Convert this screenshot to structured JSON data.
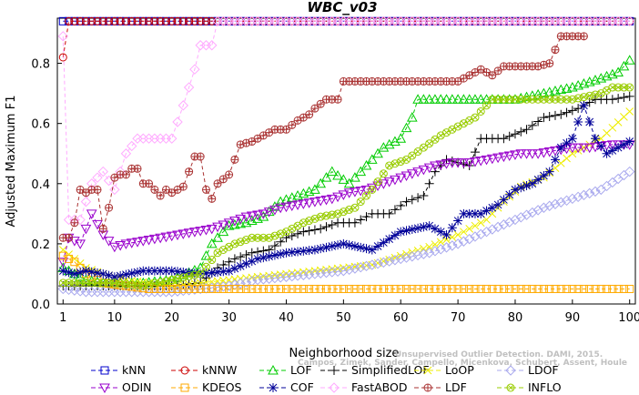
{
  "chart_data": {
    "type": "line",
    "title": "WBC_v03",
    "xlabel": "Neighborhood size",
    "ylabel": "Adjusted Maximum F1",
    "xlim": [
      0,
      101
    ],
    "ylim": [
      0,
      0.95
    ],
    "xticks": [
      1,
      10,
      20,
      30,
      40,
      50,
      60,
      70,
      80,
      90,
      100
    ],
    "yticks": [
      0.0,
      0.2,
      0.4,
      0.6,
      0.8
    ],
    "ytick_labels": [
      "0.0",
      "0.2",
      "0.4",
      "0.6",
      "0.8"
    ],
    "grid": false,
    "legend_position": "bottom",
    "watermark": [
      "Unsupervised Outlier Detection. DAMI, 2015.",
      "Campos, Zimek, Sander, Campello, Micenkova, Schubert, Assent, Houle"
    ],
    "series": [
      {
        "name": "kNN",
        "color": "#0000cc",
        "marker": "square",
        "dash": "6,3",
        "points": [
          [
            1,
            0.94
          ],
          [
            100,
            0.94
          ]
        ]
      },
      {
        "name": "kNNW",
        "color": "#cc0000",
        "marker": "circle",
        "dash": "4,3",
        "points": [
          [
            1,
            0.82
          ],
          [
            2,
            0.94
          ],
          [
            100,
            0.94
          ]
        ]
      },
      {
        "name": "LOF",
        "color": "#00cc00",
        "marker": "triangle-up",
        "dash": "4,3",
        "points": [
          [
            1,
            0.12
          ],
          [
            3,
            0.1
          ],
          [
            5,
            0.08
          ],
          [
            8,
            0.07
          ],
          [
            10,
            0.07
          ],
          [
            15,
            0.07
          ],
          [
            20,
            0.08
          ],
          [
            25,
            0.12
          ],
          [
            27,
            0.2
          ],
          [
            30,
            0.26
          ],
          [
            33,
            0.27
          ],
          [
            36,
            0.29
          ],
          [
            39,
            0.34
          ],
          [
            42,
            0.36
          ],
          [
            45,
            0.38
          ],
          [
            48,
            0.44
          ],
          [
            51,
            0.4
          ],
          [
            54,
            0.46
          ],
          [
            57,
            0.52
          ],
          [
            60,
            0.55
          ],
          [
            62,
            0.62
          ],
          [
            63,
            0.68
          ],
          [
            70,
            0.68
          ],
          [
            80,
            0.68
          ],
          [
            90,
            0.72
          ],
          [
            95,
            0.75
          ],
          [
            98,
            0.77
          ],
          [
            100,
            0.81
          ]
        ]
      },
      {
        "name": "SimplifiedLOF",
        "color": "#000000",
        "marker": "plus",
        "dash": "4,3",
        "points": [
          [
            1,
            0.06
          ],
          [
            5,
            0.06
          ],
          [
            10,
            0.06
          ],
          [
            20,
            0.06
          ],
          [
            25,
            0.07
          ],
          [
            28,
            0.12
          ],
          [
            31,
            0.15
          ],
          [
            34,
            0.17
          ],
          [
            37,
            0.18
          ],
          [
            40,
            0.22
          ],
          [
            43,
            0.24
          ],
          [
            46,
            0.25
          ],
          [
            49,
            0.27
          ],
          [
            52,
            0.27
          ],
          [
            55,
            0.3
          ],
          [
            58,
            0.3
          ],
          [
            61,
            0.34
          ],
          [
            64,
            0.36
          ],
          [
            66,
            0.44
          ],
          [
            68,
            0.48
          ],
          [
            72,
            0.46
          ],
          [
            74,
            0.55
          ],
          [
            78,
            0.55
          ],
          [
            82,
            0.58
          ],
          [
            85,
            0.62
          ],
          [
            88,
            0.63
          ],
          [
            91,
            0.65
          ],
          [
            94,
            0.68
          ],
          [
            97,
            0.68
          ],
          [
            100,
            0.69
          ]
        ]
      },
      {
        "name": "LoOP",
        "color": "#eeee00",
        "marker": "x",
        "dash": "4,3",
        "points": [
          [
            1,
            0.18
          ],
          [
            3,
            0.15
          ],
          [
            5,
            0.12
          ],
          [
            8,
            0.1
          ],
          [
            12,
            0.08
          ],
          [
            16,
            0.07
          ],
          [
            20,
            0.06
          ],
          [
            25,
            0.07
          ],
          [
            30,
            0.08
          ],
          [
            35,
            0.09
          ],
          [
            40,
            0.1
          ],
          [
            45,
            0.11
          ],
          [
            50,
            0.12
          ],
          [
            55,
            0.13
          ],
          [
            60,
            0.16
          ],
          [
            65,
            0.19
          ],
          [
            70,
            0.23
          ],
          [
            75,
            0.28
          ],
          [
            78,
            0.34
          ],
          [
            81,
            0.39
          ],
          [
            85,
            0.42
          ],
          [
            90,
            0.5
          ],
          [
            95,
            0.55
          ],
          [
            100,
            0.64
          ]
        ]
      },
      {
        "name": "LDOF",
        "color": "#aaaaee",
        "marker": "diamond",
        "dash": "4,3",
        "points": [
          [
            1,
            0.05
          ],
          [
            5,
            0.04
          ],
          [
            10,
            0.04
          ],
          [
            15,
            0.04
          ],
          [
            20,
            0.04
          ],
          [
            25,
            0.05
          ],
          [
            30,
            0.06
          ],
          [
            35,
            0.08
          ],
          [
            40,
            0.09
          ],
          [
            45,
            0.1
          ],
          [
            50,
            0.11
          ],
          [
            55,
            0.13
          ],
          [
            60,
            0.15
          ],
          [
            65,
            0.17
          ],
          [
            70,
            0.2
          ],
          [
            75,
            0.24
          ],
          [
            80,
            0.28
          ],
          [
            85,
            0.32
          ],
          [
            90,
            0.35
          ],
          [
            95,
            0.38
          ],
          [
            100,
            0.44
          ]
        ]
      },
      {
        "name": "ODIN",
        "color": "#9900cc",
        "marker": "triangle-down",
        "dash": "4,3",
        "points": [
          [
            1,
            0.14
          ],
          [
            2,
            0.22
          ],
          [
            4,
            0.2
          ],
          [
            6,
            0.3
          ],
          [
            8,
            0.23
          ],
          [
            10,
            0.19
          ],
          [
            12,
            0.2
          ],
          [
            15,
            0.21
          ],
          [
            18,
            0.22
          ],
          [
            21,
            0.23
          ],
          [
            24,
            0.24
          ],
          [
            27,
            0.25
          ],
          [
            30,
            0.27
          ],
          [
            33,
            0.29
          ],
          [
            36,
            0.3
          ],
          [
            39,
            0.32
          ],
          [
            42,
            0.33
          ],
          [
            45,
            0.34
          ],
          [
            48,
            0.35
          ],
          [
            51,
            0.37
          ],
          [
            54,
            0.38
          ],
          [
            57,
            0.4
          ],
          [
            60,
            0.42
          ],
          [
            63,
            0.44
          ],
          [
            66,
            0.46
          ],
          [
            69,
            0.47
          ],
          [
            72,
            0.47
          ],
          [
            75,
            0.48
          ],
          [
            78,
            0.49
          ],
          [
            81,
            0.5
          ],
          [
            84,
            0.5
          ],
          [
            87,
            0.51
          ],
          [
            90,
            0.52
          ],
          [
            93,
            0.52
          ],
          [
            97,
            0.53
          ],
          [
            100,
            0.53
          ]
        ]
      },
      {
        "name": "KDEOS",
        "color": "#ffaa00",
        "marker": "square",
        "dash": "4,3",
        "points": [
          [
            1,
            0.16
          ],
          [
            3,
            0.14
          ],
          [
            5,
            0.1
          ],
          [
            8,
            0.07
          ],
          [
            12,
            0.06
          ],
          [
            16,
            0.05
          ],
          [
            20,
            0.05
          ],
          [
            30,
            0.05
          ],
          [
            40,
            0.05
          ],
          [
            50,
            0.05
          ],
          [
            60,
            0.05
          ],
          [
            70,
            0.05
          ],
          [
            80,
            0.05
          ],
          [
            90,
            0.05
          ],
          [
            100,
            0.05
          ]
        ]
      },
      {
        "name": "COF",
        "color": "#000099",
        "marker": "asterisk",
        "dash": "4,3",
        "points": [
          [
            1,
            0.11
          ],
          [
            3,
            0.1
          ],
          [
            5,
            0.11
          ],
          [
            8,
            0.1
          ],
          [
            10,
            0.09
          ],
          [
            15,
            0.11
          ],
          [
            20,
            0.11
          ],
          [
            25,
            0.1
          ],
          [
            30,
            0.11
          ],
          [
            35,
            0.15
          ],
          [
            40,
            0.17
          ],
          [
            45,
            0.18
          ],
          [
            50,
            0.2
          ],
          [
            55,
            0.18
          ],
          [
            60,
            0.24
          ],
          [
            65,
            0.26
          ],
          [
            68,
            0.23
          ],
          [
            71,
            0.3
          ],
          [
            74,
            0.3
          ],
          [
            77,
            0.33
          ],
          [
            80,
            0.38
          ],
          [
            83,
            0.4
          ],
          [
            86,
            0.44
          ],
          [
            88,
            0.52
          ],
          [
            90,
            0.55
          ],
          [
            92,
            0.66
          ],
          [
            94,
            0.55
          ],
          [
            96,
            0.5
          ],
          [
            98,
            0.52
          ],
          [
            100,
            0.54
          ]
        ]
      },
      {
        "name": "FastABOD",
        "color": "#ffaaff",
        "marker": "diamond",
        "dash": "4,3",
        "points": [
          [
            1,
            0.89
          ],
          [
            2,
            0.28
          ],
          [
            4,
            0.28
          ],
          [
            6,
            0.4
          ],
          [
            8,
            0.44
          ],
          [
            10,
            0.38
          ],
          [
            12,
            0.5
          ],
          [
            14,
            0.55
          ],
          [
            16,
            0.55
          ],
          [
            18,
            0.55
          ],
          [
            20,
            0.55
          ],
          [
            22,
            0.66
          ],
          [
            24,
            0.78
          ],
          [
            25,
            0.86
          ],
          [
            27,
            0.86
          ],
          [
            28,
            0.94
          ],
          [
            100,
            0.94
          ]
        ]
      },
      {
        "name": "LDF",
        "color": "#aa3333",
        "marker": "circle-plus",
        "dash": "4,3",
        "points": [
          [
            1,
            0.22
          ],
          [
            2,
            0.22
          ],
          [
            3,
            0.27
          ],
          [
            4,
            0.38
          ],
          [
            5,
            0.37
          ],
          [
            6,
            0.38
          ],
          [
            7,
            0.38
          ],
          [
            8,
            0.25
          ],
          [
            9,
            0.32
          ],
          [
            10,
            0.42
          ],
          [
            11,
            0.43
          ],
          [
            12,
            0.43
          ],
          [
            13,
            0.45
          ],
          [
            14,
            0.45
          ],
          [
            15,
            0.4
          ],
          [
            16,
            0.4
          ],
          [
            17,
            0.38
          ],
          [
            18,
            0.36
          ],
          [
            19,
            0.38
          ],
          [
            20,
            0.37
          ],
          [
            22,
            0.39
          ],
          [
            24,
            0.49
          ],
          [
            25,
            0.49
          ],
          [
            26,
            0.38
          ],
          [
            27,
            0.35
          ],
          [
            28,
            0.4
          ],
          [
            30,
            0.43
          ],
          [
            32,
            0.53
          ],
          [
            34,
            0.54
          ],
          [
            36,
            0.56
          ],
          [
            38,
            0.58
          ],
          [
            40,
            0.58
          ],
          [
            42,
            0.61
          ],
          [
            44,
            0.63
          ],
          [
            45,
            0.65
          ],
          [
            47,
            0.68
          ],
          [
            49,
            0.68
          ],
          [
            50,
            0.74
          ],
          [
            55,
            0.74
          ],
          [
            60,
            0.74
          ],
          [
            65,
            0.74
          ],
          [
            70,
            0.74
          ],
          [
            72,
            0.76
          ],
          [
            74,
            0.78
          ],
          [
            76,
            0.76
          ],
          [
            78,
            0.79
          ],
          [
            84,
            0.79
          ],
          [
            86,
            0.8
          ],
          [
            88,
            0.89
          ],
          [
            92,
            0.89
          ]
        ]
      },
      {
        "name": "INFLO",
        "color": "#99cc00",
        "marker": "circle-x",
        "dash": "4,3",
        "points": [
          [
            1,
            0.07
          ],
          [
            5,
            0.07
          ],
          [
            10,
            0.07
          ],
          [
            15,
            0.06
          ],
          [
            20,
            0.08
          ],
          [
            25,
            0.1
          ],
          [
            28,
            0.17
          ],
          [
            31,
            0.2
          ],
          [
            34,
            0.22
          ],
          [
            37,
            0.22
          ],
          [
            40,
            0.24
          ],
          [
            43,
            0.27
          ],
          [
            46,
            0.29
          ],
          [
            49,
            0.3
          ],
          [
            52,
            0.32
          ],
          [
            55,
            0.38
          ],
          [
            58,
            0.46
          ],
          [
            61,
            0.48
          ],
          [
            64,
            0.52
          ],
          [
            67,
            0.56
          ],
          [
            70,
            0.59
          ],
          [
            73,
            0.62
          ],
          [
            76,
            0.68
          ],
          [
            80,
            0.68
          ],
          [
            85,
            0.68
          ],
          [
            90,
            0.68
          ],
          [
            95,
            0.7
          ],
          [
            97,
            0.72
          ],
          [
            100,
            0.72
          ]
        ]
      }
    ]
  }
}
